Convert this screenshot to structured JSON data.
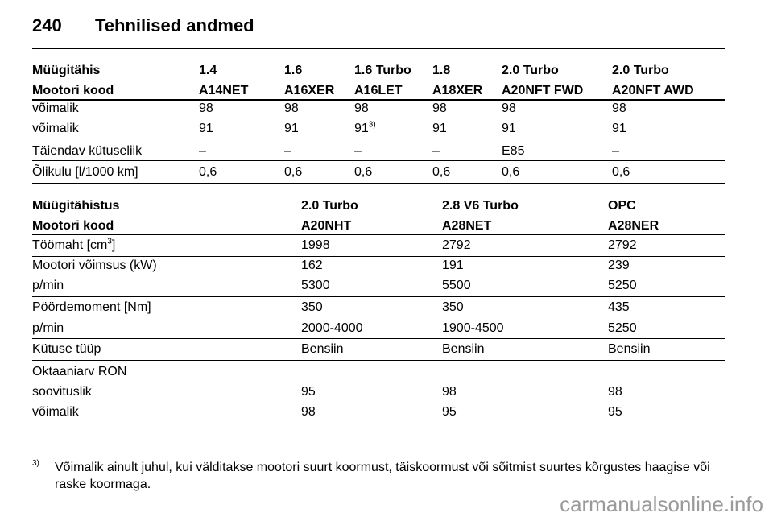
{
  "header": {
    "page_number": "240",
    "title": "Tehnilised andmed"
  },
  "table1": {
    "header_rows": [
      [
        "Müügitähis",
        "1.4",
        "1.6",
        "1.6 Turbo",
        "1.8",
        "2.0 Turbo",
        "2.0 Turbo"
      ],
      [
        "Mootori kood",
        "A14NET",
        "A16XER",
        "A16LET",
        "A18XER",
        "A20NFT FWD",
        "A20NFT AWD"
      ]
    ],
    "rows": [
      [
        "võimalik",
        "98",
        "98",
        "98",
        "98",
        "98",
        "98"
      ],
      [
        "võimalik",
        "91",
        "91",
        {
          "text": "91",
          "sup": "3)"
        },
        "91",
        "91",
        "91"
      ],
      [
        "Täiendav kütuseliik",
        "–",
        "–",
        "–",
        "–",
        "E85",
        "–"
      ],
      [
        "Õlikulu [l/1000 km]",
        "0,6",
        "0,6",
        "0,6",
        "0,6",
        "0,6",
        "0,6"
      ]
    ]
  },
  "table2": {
    "header_rows": [
      [
        "Müügitähistus",
        "2.0 Turbo",
        "2.8 V6 Turbo",
        "OPC"
      ],
      [
        "Mootori kood",
        "A20NHT",
        "A28NET",
        "A28NER"
      ]
    ],
    "rows": [
      [
        {
          "text": "Töömaht [cm",
          "sup": "3",
          "after": "]"
        },
        "1998",
        "2792",
        "2792"
      ],
      [
        "Mootori võimsus (kW)",
        "162",
        "191",
        "239"
      ],
      [
        "p/min",
        "5300",
        "5500",
        "5250"
      ],
      [
        "Pöördemoment [Nm]",
        "350",
        "350",
        "435"
      ],
      [
        "p/min",
        "2000-4000",
        "1900-4500",
        "5250"
      ],
      [
        "Kütuse tüüp",
        "Bensiin",
        "Bensiin",
        "Bensiin"
      ],
      [
        "Oktaaniarv RON"
      ],
      [
        "soovituslik",
        "95",
        "98",
        "98"
      ],
      [
        "võimalik",
        "98",
        "95",
        "95"
      ]
    ]
  },
  "footnote": {
    "marker": "3)",
    "text": "Võimalik ainult juhul, kui välditakse mootori suurt koormust, täiskoormust või sõitmist suurtes kõrgustes haagise või raske koormaga."
  },
  "watermark": "carmanualsonline.info"
}
